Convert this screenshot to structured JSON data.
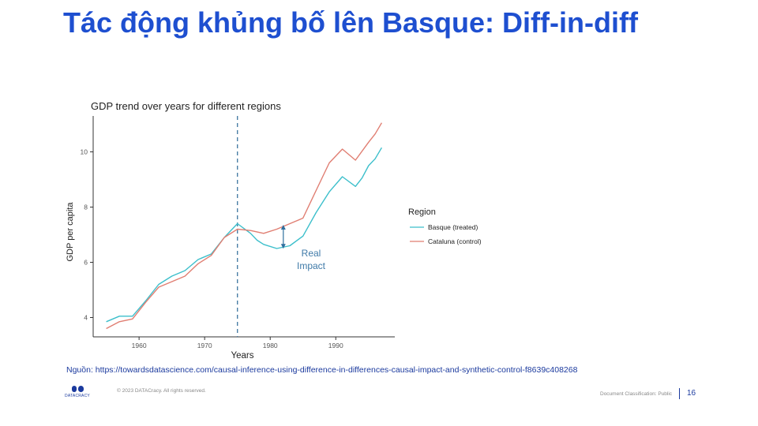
{
  "slide": {
    "title": "Tác động khủng bố lên Basque: Diff-in-diff",
    "source": "Nguồn: https://towardsdatascience.com/causal-inference-using-difference-in-differences-causal-impact-and-synthetic-control-f8639c408268",
    "copyright": "© 2023 DATACracy. All rights reserved.",
    "classification": "Document Classification: Public",
    "page_number": "16",
    "logo_text": "DATACRACY",
    "colors": {
      "title": "#1e4fd0",
      "brand": "#1b3a9e"
    }
  },
  "chart_data": {
    "type": "line",
    "title": "GDP trend over years for different regions",
    "xlabel": "Years",
    "ylabel": "GDP per capita",
    "xlim": [
      1953,
      1999
    ],
    "ylim": [
      3.3,
      11.3
    ],
    "xticks": [
      1960,
      1970,
      1980,
      1990
    ],
    "yticks": [
      4,
      6,
      8,
      10
    ],
    "grid": false,
    "legend": {
      "title": "Region",
      "placement": "right"
    },
    "treatment_year": 1975,
    "annotation": {
      "lines": [
        "Real",
        "Impact"
      ],
      "year": 1982,
      "from": 6.55,
      "to": 7.3
    },
    "series": [
      {
        "name": "Basque (treated)",
        "color": "#3cbfcb",
        "x": [
          1955,
          1957,
          1959,
          1961,
          1963,
          1965,
          1967,
          1969,
          1971,
          1973,
          1975,
          1977,
          1978,
          1979,
          1981,
          1983,
          1985,
          1987,
          1989,
          1991,
          1993,
          1994,
          1995,
          1996,
          1997
        ],
        "values": [
          3.85,
          4.05,
          4.05,
          4.6,
          5.2,
          5.5,
          5.7,
          6.1,
          6.3,
          6.9,
          7.4,
          7.05,
          6.8,
          6.65,
          6.5,
          6.6,
          6.95,
          7.8,
          8.55,
          9.1,
          8.75,
          9.05,
          9.5,
          9.75,
          10.15
        ]
      },
      {
        "name": "Cataluna (control)",
        "color": "#e07e72",
        "x": [
          1955,
          1957,
          1959,
          1961,
          1963,
          1965,
          1967,
          1969,
          1971,
          1973,
          1975,
          1977,
          1979,
          1981,
          1983,
          1985,
          1987,
          1989,
          1991,
          1993,
          1995,
          1996,
          1997
        ],
        "values": [
          3.6,
          3.85,
          3.95,
          4.55,
          5.1,
          5.3,
          5.5,
          5.95,
          6.25,
          6.9,
          7.2,
          7.15,
          7.05,
          7.2,
          7.4,
          7.6,
          8.6,
          9.6,
          10.1,
          9.7,
          10.35,
          10.65,
          11.05
        ]
      }
    ]
  }
}
